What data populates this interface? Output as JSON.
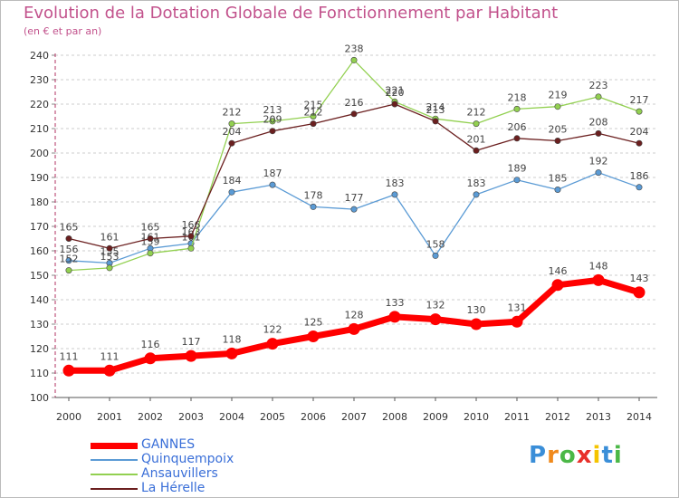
{
  "title": "Evolution de la Dotation Globale de Fonctionnement par Habitant",
  "subtitle": "(en € et par an)",
  "logo": {
    "letters": [
      "P",
      "r",
      "o",
      "x",
      "i",
      "t",
      "i"
    ],
    "colors": [
      "#3a8ed8",
      "#f08a1c",
      "#4bb847",
      "#e8302a",
      "#f5c400",
      "#3a8ed8",
      "#4bb847"
    ]
  },
  "chart_data": {
    "type": "line",
    "x": [
      "2000",
      "2001",
      "2002",
      "2003",
      "2004",
      "2005",
      "2006",
      "2007",
      "2008",
      "2009",
      "2010",
      "2011",
      "2012",
      "2013",
      "2014"
    ],
    "ylim": [
      100,
      240
    ],
    "yticks": [
      "100",
      "110",
      "120",
      "130",
      "140",
      "150",
      "160",
      "170",
      "180",
      "190",
      "200",
      "210",
      "220",
      "230",
      "240"
    ],
    "grid": "horizontal-dashed",
    "legend_position": "bottom-left",
    "series": [
      {
        "name": "GANNES",
        "color": "#ff0000",
        "emphasis": true,
        "values": [
          111,
          111,
          116,
          117,
          118,
          122,
          125,
          128,
          133,
          132,
          130,
          131,
          146,
          148,
          143
        ]
      },
      {
        "name": "Quinquempoix",
        "color": "#5b9bd5",
        "emphasis": false,
        "values": [
          156,
          155,
          161,
          163,
          184,
          187,
          178,
          177,
          183,
          158,
          183,
          189,
          185,
          192,
          186
        ]
      },
      {
        "name": "Ansauvillers",
        "color": "#92d050",
        "emphasis": false,
        "values": [
          152,
          153,
          159,
          161,
          212,
          213,
          215,
          238,
          221,
          214,
          212,
          218,
          219,
          223,
          217
        ]
      },
      {
        "name": "La Hérelle",
        "color": "#6b1f1f",
        "emphasis": false,
        "values": [
          165,
          161,
          165,
          166,
          204,
          209,
          212,
          216,
          220,
          213,
          201,
          206,
          205,
          208,
          204
        ]
      }
    ]
  }
}
